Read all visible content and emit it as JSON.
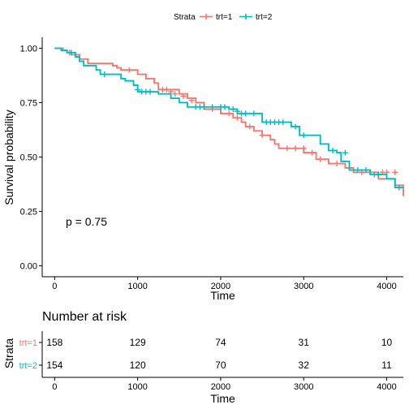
{
  "legend": {
    "title": "Strata",
    "items": [
      {
        "label": "trt=1",
        "color": "#F8766D"
      },
      {
        "label": "trt=2",
        "color": "#00BFC4"
      }
    ]
  },
  "chart_data": [
    {
      "type": "line",
      "subtype": "kaplan-meier-survival-curve",
      "xlabel": "Time",
      "ylabel": "Survival probability",
      "xlim": [
        -150,
        4200
      ],
      "ylim": [
        -0.05,
        1.05
      ],
      "x_ticks": [
        0,
        1000,
        2000,
        3000,
        4000
      ],
      "y_ticks": [
        0.0,
        0.25,
        0.5,
        0.75,
        1.0
      ],
      "y_tick_labels": [
        "0.00",
        "0.25",
        "0.50",
        "0.75",
        "1.00"
      ],
      "x_tick_labels": [
        "0",
        "1000",
        "2000",
        "3000",
        "4000"
      ],
      "annotation": "p = 0.75",
      "legend_position": "top",
      "grid": false,
      "censor_mark": "+",
      "series": [
        {
          "name": "trt=1",
          "color": "#F8766D",
          "steps": [
            [
              0,
              1.0
            ],
            [
              100,
              0.99
            ],
            [
              150,
              0.98
            ],
            [
              200,
              0.97
            ],
            [
              300,
              0.95
            ],
            [
              400,
              0.93
            ],
            [
              700,
              0.92
            ],
            [
              750,
              0.91
            ],
            [
              800,
              0.9
            ],
            [
              1000,
              0.88
            ],
            [
              1100,
              0.86
            ],
            [
              1200,
              0.84
            ],
            [
              1250,
              0.81
            ],
            [
              1500,
              0.79
            ],
            [
              1600,
              0.77
            ],
            [
              1700,
              0.75
            ],
            [
              1800,
              0.72
            ],
            [
              2000,
              0.7
            ],
            [
              2150,
              0.68
            ],
            [
              2250,
              0.66
            ],
            [
              2300,
              0.64
            ],
            [
              2400,
              0.62
            ],
            [
              2500,
              0.6
            ],
            [
              2600,
              0.58
            ],
            [
              2650,
              0.56
            ],
            [
              2700,
              0.54
            ],
            [
              3000,
              0.52
            ],
            [
              3150,
              0.49
            ],
            [
              3300,
              0.47
            ],
            [
              3500,
              0.45
            ],
            [
              3600,
              0.43
            ],
            [
              3900,
              0.4
            ],
            [
              4100,
              0.37
            ],
            [
              4200,
              0.32
            ]
          ],
          "censored": [
            [
              180,
              0.98
            ],
            [
              900,
              0.9
            ],
            [
              1300,
              0.81
            ],
            [
              1350,
              0.81
            ],
            [
              1400,
              0.8
            ],
            [
              1450,
              0.79
            ],
            [
              1550,
              0.78
            ],
            [
              1650,
              0.76
            ],
            [
              1900,
              0.72
            ],
            [
              2100,
              0.7
            ],
            [
              2200,
              0.68
            ],
            [
              2350,
              0.64
            ],
            [
              2500,
              0.6
            ],
            [
              2800,
              0.54
            ],
            [
              2900,
              0.54
            ],
            [
              3000,
              0.54
            ],
            [
              3100,
              0.52
            ],
            [
              3200,
              0.49
            ],
            [
              3400,
              0.47
            ],
            [
              3550,
              0.45
            ],
            [
              3700,
              0.43
            ],
            [
              3800,
              0.43
            ],
            [
              3950,
              0.43
            ],
            [
              4000,
              0.43
            ],
            [
              4100,
              0.43
            ]
          ]
        },
        {
          "name": "trt=2",
          "color": "#00BFC4",
          "steps": [
            [
              0,
              1.0
            ],
            [
              80,
              0.99
            ],
            [
              150,
              0.98
            ],
            [
              250,
              0.96
            ],
            [
              300,
              0.94
            ],
            [
              350,
              0.92
            ],
            [
              500,
              0.9
            ],
            [
              550,
              0.88
            ],
            [
              800,
              0.86
            ],
            [
              850,
              0.85
            ],
            [
              950,
              0.83
            ],
            [
              1000,
              0.8
            ],
            [
              1250,
              0.79
            ],
            [
              1400,
              0.77
            ],
            [
              1500,
              0.75
            ],
            [
              1600,
              0.73
            ],
            [
              2100,
              0.72
            ],
            [
              2200,
              0.7
            ],
            [
              2500,
              0.66
            ],
            [
              2850,
              0.64
            ],
            [
              2950,
              0.6
            ],
            [
              3200,
              0.56
            ],
            [
              3300,
              0.53
            ],
            [
              3400,
              0.52
            ],
            [
              3450,
              0.48
            ],
            [
              3550,
              0.44
            ],
            [
              3800,
              0.42
            ],
            [
              4000,
              0.4
            ],
            [
              4100,
              0.36
            ]
          ],
          "censored": [
            [
              200,
              0.98
            ],
            [
              600,
              0.88
            ],
            [
              1000,
              0.81
            ],
            [
              1050,
              0.8
            ],
            [
              1100,
              0.8
            ],
            [
              1150,
              0.8
            ],
            [
              1700,
              0.73
            ],
            [
              1750,
              0.73
            ],
            [
              1800,
              0.73
            ],
            [
              1900,
              0.73
            ],
            [
              2000,
              0.73
            ],
            [
              2050,
              0.73
            ],
            [
              2150,
              0.72
            ],
            [
              2200,
              0.71
            ],
            [
              2250,
              0.7
            ],
            [
              2300,
              0.7
            ],
            [
              2400,
              0.7
            ],
            [
              2550,
              0.66
            ],
            [
              2600,
              0.66
            ],
            [
              2650,
              0.66
            ],
            [
              2700,
              0.66
            ],
            [
              2750,
              0.66
            ],
            [
              2900,
              0.64
            ],
            [
              3000,
              0.6
            ],
            [
              3350,
              0.53
            ],
            [
              3500,
              0.52
            ],
            [
              3650,
              0.44
            ],
            [
              3750,
              0.44
            ],
            [
              3850,
              0.42
            ],
            [
              3900,
              0.42
            ],
            [
              4150,
              0.36
            ]
          ]
        }
      ]
    },
    {
      "type": "table",
      "title": "Number at risk",
      "xlabel": "Time",
      "ylabel": "Strata",
      "x_ticks": [
        0,
        1000,
        2000,
        3000,
        4000
      ],
      "x_tick_labels": [
        "0",
        "1000",
        "2000",
        "3000",
        "4000"
      ],
      "rows": [
        {
          "label": "trt=1",
          "color": "#F8766D",
          "values": [
            158,
            129,
            74,
            31,
            10
          ]
        },
        {
          "label": "trt=2",
          "color": "#00BFC4",
          "values": [
            154,
            120,
            70,
            32,
            11
          ]
        }
      ]
    }
  ]
}
